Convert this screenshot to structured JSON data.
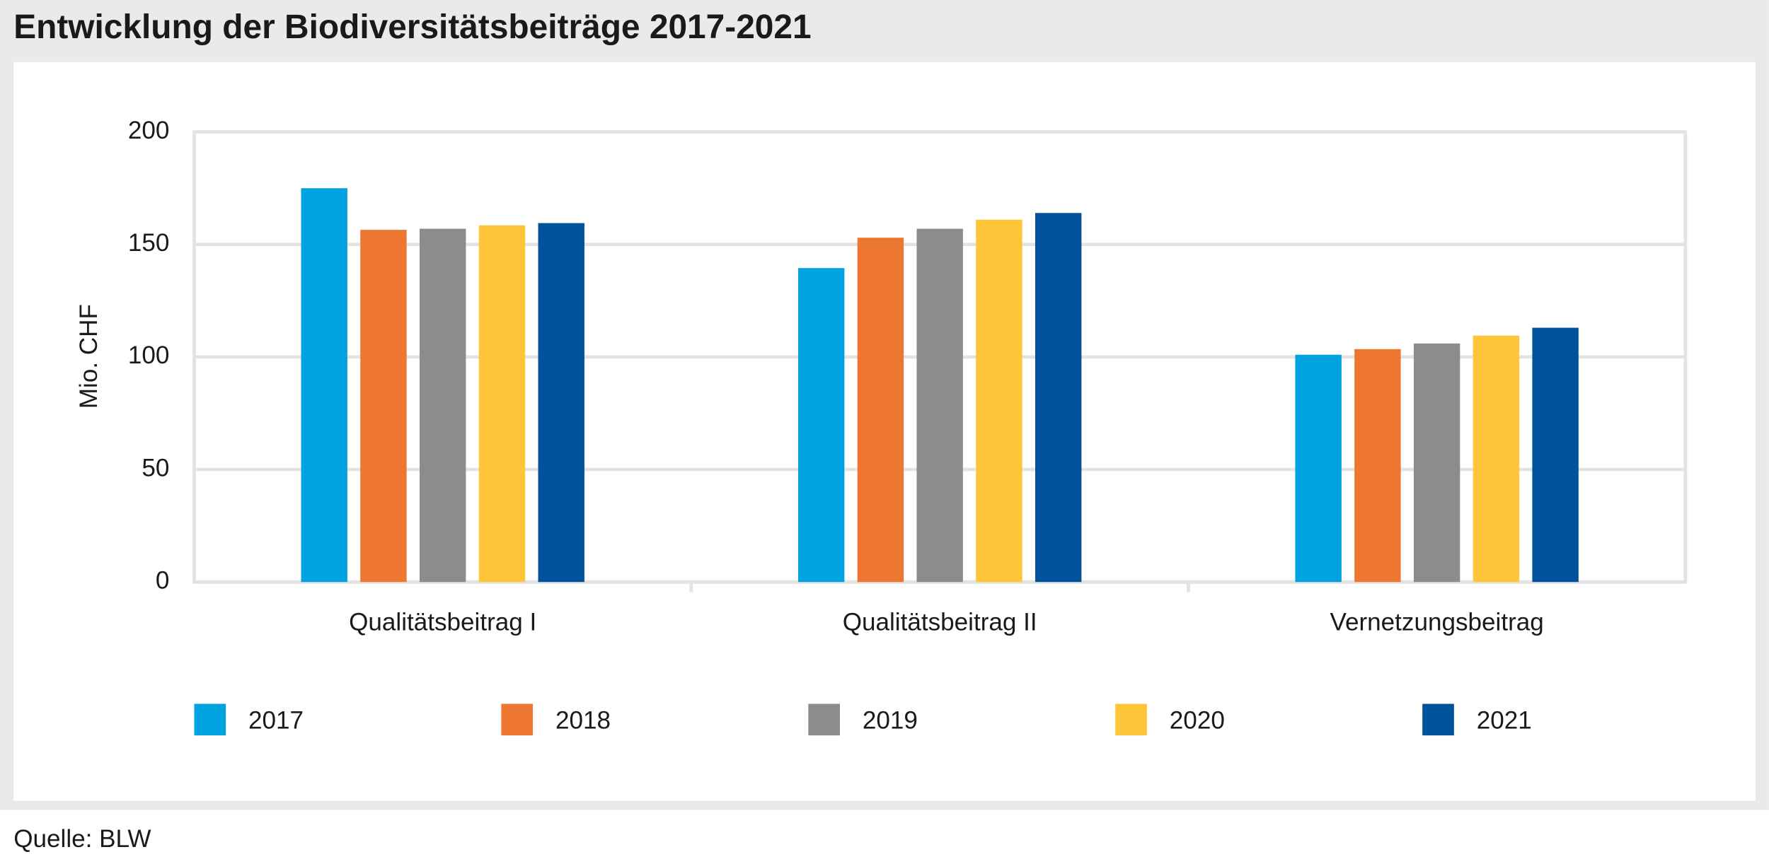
{
  "chart_data": {
    "type": "bar",
    "title": "Entwicklung der Biodiversitätsbeiträge 2017-2021",
    "y_label": "Mio. CHF",
    "source": "Quelle: BLW",
    "categories": [
      "Qualitätsbeitrag I",
      "Qualitätsbeitrag II",
      "Vernetzungsbeitrag"
    ],
    "series": [
      {
        "name": "2017",
        "color": "#00a3e0",
        "values": [
          175,
          139.5,
          101
        ]
      },
      {
        "name": "2018",
        "color": "#ed7631",
        "values": [
          156.5,
          153,
          103.5
        ]
      },
      {
        "name": "2019",
        "color": "#8c8c8c",
        "values": [
          157,
          157,
          106
        ]
      },
      {
        "name": "2020",
        "color": "#fdc537",
        "values": [
          158.5,
          161,
          109.5
        ]
      },
      {
        "name": "2021",
        "color": "#00529b",
        "values": [
          159.5,
          164,
          113
        ]
      }
    ],
    "ylim": [
      0,
      200
    ],
    "yticks": [
      0,
      50,
      100,
      150,
      200
    ],
    "grid": true
  }
}
